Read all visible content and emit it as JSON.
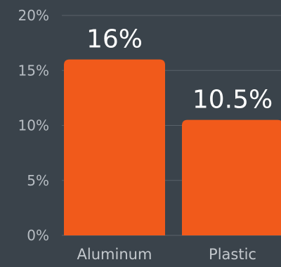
{
  "chart_data": {
    "type": "bar",
    "categories": [
      "Aluminum",
      "Plastic"
    ],
    "values": [
      16,
      10.5
    ],
    "data_labels": [
      "16%",
      "10.5%"
    ],
    "yticks": [
      0,
      5,
      10,
      15,
      20
    ],
    "ytick_labels": [
      "0%",
      "5%",
      "10%",
      "15%",
      "20%"
    ],
    "ylim": [
      0,
      20
    ],
    "grid": true,
    "bar_color": "#f15a1b",
    "background": "#3a434b"
  }
}
